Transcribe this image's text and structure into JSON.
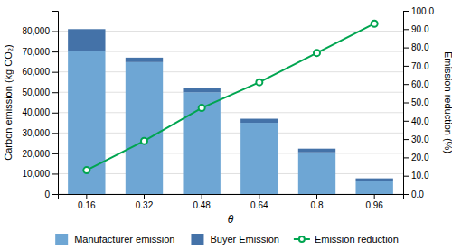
{
  "chart_data": {
    "type": "bar",
    "stacked": true,
    "categories": [
      "0.16",
      "0.32",
      "0.48",
      "0.64",
      "0.8",
      "0.96"
    ],
    "xlabel": "θ",
    "ylabel": "Carbon emission (kg CO₂)",
    "y2label": "Emission reduction (%)",
    "ylim": [
      0,
      90000
    ],
    "yticks": [
      0,
      {
        "value": 10000,
        "label": "10,000"
      },
      {
        "value": 20000,
        "label": "20,000"
      },
      {
        "value": 30000,
        "label": "30,000"
      },
      {
        "value": 40000,
        "label": "40,000"
      },
      {
        "value": 50000,
        "label": "50,000"
      },
      {
        "value": 60000,
        "label": "60,000"
      },
      {
        "value": 70000,
        "label": "70,000"
      },
      {
        "value": 80000,
        "label": "80,000"
      }
    ],
    "y2lim": [
      0.0,
      100.0
    ],
    "y2ticks": [
      {
        "value": 0.0,
        "label": "0.0"
      },
      {
        "value": 10.0,
        "label": "10.0"
      },
      {
        "value": 20.0,
        "label": "20.0"
      },
      {
        "value": 30.0,
        "label": "30.0"
      },
      {
        "value": 40.0,
        "label": "40.0"
      },
      {
        "value": 50.0,
        "label": "50.0"
      },
      {
        "value": 60.0,
        "label": "60.0"
      },
      {
        "value": 70.0,
        "label": "70.0"
      },
      {
        "value": 80.0,
        "label": "80.0"
      },
      {
        "value": 90.0,
        "label": "90.0"
      },
      {
        "value": 100.0,
        "label": "100.0"
      }
    ],
    "grid": true,
    "legend": "bottom",
    "series": [
      {
        "name": "Manufacturer emission",
        "color": "#6EA6D4",
        "values": [
          70500,
          64800,
          50000,
          35000,
          20500,
          6500
        ]
      },
      {
        "name": "Buyer Emission",
        "color": "#4472A8",
        "values": [
          10500,
          2200,
          2200,
          2000,
          1800,
          1200
        ]
      },
      {
        "name": "Emission reduction",
        "type": "line",
        "axis": "y2",
        "color": "#00A550",
        "marker": "circle",
        "values": [
          13.0,
          29.0,
          47.0,
          61.0,
          77.0,
          93.0
        ]
      }
    ]
  }
}
